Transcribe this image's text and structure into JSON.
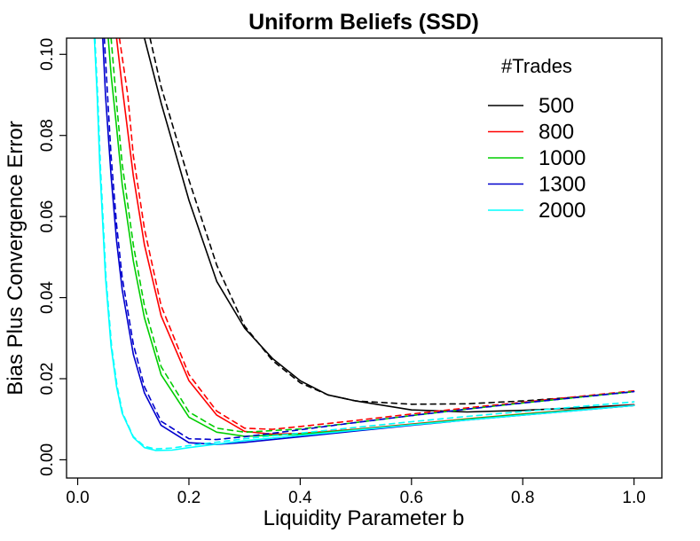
{
  "chart_data": {
    "type": "line",
    "title": "Uniform Beliefs (SSD)",
    "xlabel": "Liquidity Parameter b",
    "ylabel": "Bias Plus Convergence Error",
    "xlim": [
      -0.02,
      1.05
    ],
    "ylim": [
      -0.0045,
      0.104
    ],
    "x_ticks": [
      0.0,
      0.2,
      0.4,
      0.6,
      0.8,
      1.0
    ],
    "x_tick_labels": [
      "0.0",
      "0.2",
      "0.4",
      "0.6",
      "0.8",
      "1.0"
    ],
    "y_ticks": [
      0.0,
      0.02,
      0.04,
      0.06,
      0.08,
      0.1
    ],
    "y_tick_labels": [
      "0.00",
      "0.02",
      "0.04",
      "0.06",
      "0.08",
      "0.10"
    ],
    "grid": false,
    "legend": {
      "title": "#Trades",
      "position": "top-right"
    },
    "line_styles": {
      "solid": "solid",
      "dashed": "dashed"
    },
    "series": [
      {
        "name": "500",
        "color": "#000000",
        "solid": [
          [
            0.12,
            0.104
          ],
          [
            0.15,
            0.088
          ],
          [
            0.2,
            0.064
          ],
          [
            0.25,
            0.044
          ],
          [
            0.3,
            0.0325
          ],
          [
            0.35,
            0.025
          ],
          [
            0.4,
            0.0195
          ],
          [
            0.45,
            0.016
          ],
          [
            0.5,
            0.0145
          ],
          [
            0.6,
            0.0123
          ],
          [
            0.7,
            0.0118
          ],
          [
            0.8,
            0.0122
          ],
          [
            0.9,
            0.0128
          ],
          [
            1.0,
            0.0136
          ]
        ],
        "dashed": [
          [
            0.13,
            0.104
          ],
          [
            0.15,
            0.092
          ],
          [
            0.2,
            0.069
          ],
          [
            0.25,
            0.048
          ],
          [
            0.3,
            0.033
          ],
          [
            0.35,
            0.0245
          ],
          [
            0.4,
            0.019
          ],
          [
            0.45,
            0.016
          ],
          [
            0.5,
            0.0145
          ],
          [
            0.6,
            0.0137
          ],
          [
            0.7,
            0.0138
          ],
          [
            0.8,
            0.0145
          ],
          [
            0.9,
            0.0155
          ],
          [
            1.0,
            0.0168
          ]
        ]
      },
      {
        "name": "800",
        "color": "#ff0000",
        "solid": [
          [
            0.07,
            0.104
          ],
          [
            0.08,
            0.092
          ],
          [
            0.1,
            0.07
          ],
          [
            0.12,
            0.053
          ],
          [
            0.15,
            0.0355
          ],
          [
            0.2,
            0.0195
          ],
          [
            0.25,
            0.011
          ],
          [
            0.3,
            0.007
          ],
          [
            0.35,
            0.0063
          ],
          [
            0.4,
            0.0065
          ],
          [
            0.5,
            0.0075
          ],
          [
            0.6,
            0.0088
          ],
          [
            0.7,
            0.0101
          ],
          [
            0.8,
            0.0113
          ],
          [
            0.9,
            0.0124
          ],
          [
            1.0,
            0.0135
          ]
        ],
        "dashed": [
          [
            0.075,
            0.104
          ],
          [
            0.09,
            0.09
          ],
          [
            0.1,
            0.075
          ],
          [
            0.12,
            0.057
          ],
          [
            0.15,
            0.038
          ],
          [
            0.2,
            0.021
          ],
          [
            0.25,
            0.012
          ],
          [
            0.3,
            0.0078
          ],
          [
            0.35,
            0.0075
          ],
          [
            0.4,
            0.0082
          ],
          [
            0.5,
            0.0097
          ],
          [
            0.6,
            0.0113
          ],
          [
            0.7,
            0.0128
          ],
          [
            0.8,
            0.0142
          ],
          [
            0.9,
            0.0156
          ],
          [
            1.0,
            0.017
          ]
        ]
      },
      {
        "name": "1000",
        "color": "#00cd00",
        "solid": [
          [
            0.055,
            0.104
          ],
          [
            0.06,
            0.095
          ],
          [
            0.07,
            0.082
          ],
          [
            0.08,
            0.068
          ],
          [
            0.1,
            0.049
          ],
          [
            0.12,
            0.035
          ],
          [
            0.15,
            0.021
          ],
          [
            0.2,
            0.0105
          ],
          [
            0.25,
            0.0068
          ],
          [
            0.3,
            0.0058
          ],
          [
            0.4,
            0.0063
          ],
          [
            0.5,
            0.0074
          ],
          [
            0.6,
            0.0087
          ],
          [
            0.7,
            0.01
          ],
          [
            0.8,
            0.0112
          ],
          [
            0.9,
            0.0123
          ],
          [
            1.0,
            0.0134
          ]
        ],
        "dashed": [
          [
            0.06,
            0.104
          ],
          [
            0.07,
            0.088
          ],
          [
            0.08,
            0.073
          ],
          [
            0.1,
            0.053
          ],
          [
            0.12,
            0.038
          ],
          [
            0.15,
            0.023
          ],
          [
            0.2,
            0.0118
          ],
          [
            0.25,
            0.0078
          ],
          [
            0.3,
            0.0068
          ],
          [
            0.4,
            0.0076
          ],
          [
            0.5,
            0.0092
          ],
          [
            0.6,
            0.0109
          ],
          [
            0.7,
            0.0125
          ],
          [
            0.8,
            0.014
          ],
          [
            0.9,
            0.0154
          ],
          [
            1.0,
            0.0168
          ]
        ]
      },
      {
        "name": "1300",
        "color": "#0000cd",
        "solid": [
          [
            0.045,
            0.104
          ],
          [
            0.05,
            0.09
          ],
          [
            0.06,
            0.07
          ],
          [
            0.07,
            0.054
          ],
          [
            0.08,
            0.042
          ],
          [
            0.1,
            0.026
          ],
          [
            0.12,
            0.0165
          ],
          [
            0.15,
            0.0085
          ],
          [
            0.2,
            0.0042
          ],
          [
            0.25,
            0.0038
          ],
          [
            0.3,
            0.0043
          ],
          [
            0.4,
            0.0057
          ],
          [
            0.5,
            0.0071
          ],
          [
            0.6,
            0.0085
          ],
          [
            0.7,
            0.0098
          ],
          [
            0.8,
            0.011
          ],
          [
            0.9,
            0.0122
          ],
          [
            1.0,
            0.0134
          ]
        ],
        "dashed": [
          [
            0.048,
            0.104
          ],
          [
            0.055,
            0.087
          ],
          [
            0.06,
            0.075
          ],
          [
            0.07,
            0.058
          ],
          [
            0.08,
            0.045
          ],
          [
            0.1,
            0.0285
          ],
          [
            0.12,
            0.018
          ],
          [
            0.15,
            0.0095
          ],
          [
            0.2,
            0.0052
          ],
          [
            0.25,
            0.005
          ],
          [
            0.3,
            0.0057
          ],
          [
            0.4,
            0.0074
          ],
          [
            0.5,
            0.0092
          ],
          [
            0.6,
            0.0109
          ],
          [
            0.7,
            0.0125
          ],
          [
            0.8,
            0.014
          ],
          [
            0.9,
            0.0154
          ],
          [
            1.0,
            0.0168
          ]
        ]
      },
      {
        "name": "2000",
        "color": "#00ffff",
        "solid": [
          [
            0.03,
            0.104
          ],
          [
            0.035,
            0.09
          ],
          [
            0.04,
            0.072
          ],
          [
            0.05,
            0.045
          ],
          [
            0.06,
            0.028
          ],
          [
            0.07,
            0.018
          ],
          [
            0.08,
            0.0115
          ],
          [
            0.1,
            0.0055
          ],
          [
            0.12,
            0.003
          ],
          [
            0.14,
            0.0023
          ],
          [
            0.17,
            0.0024
          ],
          [
            0.2,
            0.003
          ],
          [
            0.3,
            0.0047
          ],
          [
            0.4,
            0.006
          ],
          [
            0.5,
            0.0073
          ],
          [
            0.6,
            0.0086
          ],
          [
            0.7,
            0.0098
          ],
          [
            0.8,
            0.011
          ],
          [
            0.9,
            0.0122
          ],
          [
            1.0,
            0.0134
          ]
        ],
        "dashed": [
          [
            0.031,
            0.104
          ],
          [
            0.036,
            0.09
          ],
          [
            0.041,
            0.072
          ],
          [
            0.051,
            0.045
          ],
          [
            0.061,
            0.028
          ],
          [
            0.071,
            0.018
          ],
          [
            0.081,
            0.0115
          ],
          [
            0.1,
            0.0057
          ],
          [
            0.12,
            0.0033
          ],
          [
            0.14,
            0.0027
          ],
          [
            0.17,
            0.0029
          ],
          [
            0.2,
            0.0035
          ],
          [
            0.3,
            0.0052
          ],
          [
            0.4,
            0.0066
          ],
          [
            0.5,
            0.008
          ],
          [
            0.6,
            0.0094
          ],
          [
            0.7,
            0.0107
          ],
          [
            0.8,
            0.0119
          ],
          [
            0.9,
            0.0131
          ],
          [
            1.0,
            0.0143
          ]
        ]
      }
    ]
  }
}
